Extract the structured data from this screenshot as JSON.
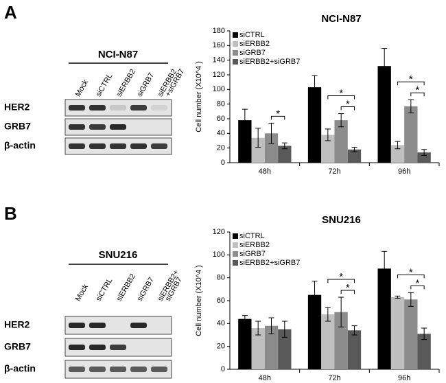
{
  "panels": [
    {
      "letter": "A",
      "blot": {
        "title": "NCI-N87",
        "lanes": [
          [
            "Mock"
          ],
          [
            "siCTRL"
          ],
          [
            "siERBB2"
          ],
          [
            "siGRB7"
          ],
          [
            "siERBB2",
            "+siGRB7"
          ]
        ],
        "rows": [
          "HER2",
          "GRB7",
          "β-actin"
        ]
      }
    },
    {
      "letter": "B",
      "blot": {
        "title": "SNU216",
        "lanes": [
          [
            "Mock"
          ],
          [
            "siCTRL"
          ],
          [
            "siERBB2"
          ],
          [
            "siGRB7"
          ],
          [
            "siERBB2+",
            "siGRB7"
          ]
        ],
        "rows": [
          "HER2",
          "GRB7",
          "β-actin"
        ]
      }
    }
  ],
  "chart_data": [
    {
      "type": "bar",
      "title": "NCI-N87",
      "ylabel": "Cell number (X10^4 )",
      "categories": [
        "48h",
        "72h",
        "96h"
      ],
      "ylim": [
        0,
        180
      ],
      "yticks": [
        0,
        20,
        40,
        60,
        80,
        100,
        120,
        140,
        160,
        180
      ],
      "series": [
        {
          "name": "siCTRL",
          "color": "#000000",
          "values": [
            58,
            103,
            132
          ],
          "errors": [
            15,
            16,
            24
          ]
        },
        {
          "name": "siERBB2",
          "color": "#bfbfbf",
          "values": [
            34,
            38,
            24
          ],
          "errors": [
            13,
            8,
            5
          ]
        },
        {
          "name": "siGRB7",
          "color": "#8c8c8c",
          "values": [
            40,
            58,
            77
          ],
          "errors": [
            14,
            9,
            9
          ]
        },
        {
          "name": "siERBB2+siGRB7",
          "color": "#595959",
          "values": [
            23,
            18,
            14
          ],
          "errors": [
            4,
            3,
            4
          ]
        }
      ],
      "significance": [
        {
          "label": "*",
          "category": 0,
          "pair": [
            2,
            3
          ]
        },
        {
          "label": "*",
          "category": 1,
          "pair": [
            2,
            3
          ]
        },
        {
          "label": "*",
          "category": 1,
          "pair": [
            1,
            3
          ]
        },
        {
          "label": "*",
          "category": 2,
          "pair": [
            2,
            3
          ]
        },
        {
          "label": "*",
          "category": 2,
          "pair": [
            1,
            3
          ]
        }
      ]
    },
    {
      "type": "bar",
      "title": "SNU216",
      "ylabel": "Cell number (X10^4 )",
      "categories": [
        "48h",
        "72h",
        "96h"
      ],
      "ylim": [
        0,
        120
      ],
      "yticks": [
        0,
        20,
        40,
        60,
        80,
        100,
        120
      ],
      "series": [
        {
          "name": "siCTRL",
          "color": "#000000",
          "values": [
            44,
            65,
            88
          ],
          "errors": [
            3,
            12,
            15
          ]
        },
        {
          "name": "siERBB2",
          "color": "#bfbfbf",
          "values": [
            36,
            48,
            63
          ],
          "errors": [
            6,
            6,
            1
          ]
        },
        {
          "name": "siGRB7",
          "color": "#8c8c8c",
          "values": [
            38,
            50,
            61
          ],
          "errors": [
            7,
            13,
            6
          ]
        },
        {
          "name": "siERBB2+siGRB7",
          "color": "#595959",
          "values": [
            35,
            34,
            31
          ],
          "errors": [
            7,
            4,
            5
          ]
        }
      ],
      "significance": [
        {
          "label": "*",
          "category": 1,
          "pair": [
            2,
            3
          ]
        },
        {
          "label": "*",
          "category": 1,
          "pair": [
            1,
            3
          ]
        },
        {
          "label": "*",
          "category": 2,
          "pair": [
            2,
            3
          ]
        },
        {
          "label": "*",
          "category": 2,
          "pair": [
            1,
            3
          ]
        }
      ]
    }
  ]
}
